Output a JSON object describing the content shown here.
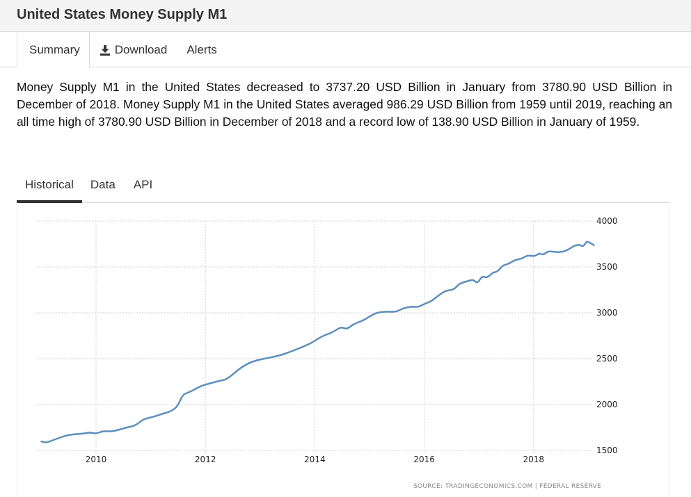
{
  "header": {
    "title": "United States Money Supply M1"
  },
  "top_tabs": [
    {
      "label": "Summary",
      "icon": null,
      "active": true
    },
    {
      "label": "Download",
      "icon": "download-icon",
      "active": false
    },
    {
      "label": "Alerts",
      "icon": null,
      "active": false
    }
  ],
  "summary": "Money Supply M1 in the United States decreased to 3737.20 USD Billion in January from 3780.90 USD Billion in December of 2018. Money Supply M1 in the United States averaged 986.29 USD Billion from 1959 until 2019, reaching an all time high of 3780.90 USD Billion in December of 2018 and a record low of 138.90 USD Billion in January of 1959.",
  "chart_tabs": [
    {
      "label": "Historical",
      "active": true
    },
    {
      "label": "Data",
      "active": false
    },
    {
      "label": "API",
      "active": false
    }
  ],
  "colors": {
    "series": "#5d8fbd",
    "grid": "#cfcfcf",
    "active_tab": "#333333"
  },
  "chart_data": {
    "type": "line",
    "title": "United States Money Supply M1",
    "xlabel": "",
    "ylabel": "USD Billion",
    "xlim": [
      2009.0,
      2019.1
    ],
    "ylim": [
      1500,
      4000
    ],
    "grid": true,
    "y_axis_position": "right",
    "x_ticks": [
      "2010",
      "2012",
      "2014",
      "2016",
      "2018"
    ],
    "x_tick_values": [
      2010,
      2012,
      2014,
      2016,
      2018
    ],
    "y_ticks": [
      "4000",
      "3500",
      "3000",
      "2500",
      "2000",
      "1500"
    ],
    "y_tick_values": [
      4000,
      3500,
      3000,
      2500,
      2000,
      1500
    ],
    "source": "SOURCE: TRADINGECONOMICS.COM | FEDERAL RESERVE",
    "series": [
      {
        "name": "Money Supply M1",
        "x": [
          2009.0,
          2009.09,
          2009.22,
          2009.33,
          2009.43,
          2009.56,
          2009.75,
          2009.9,
          2010.0,
          2010.13,
          2010.28,
          2010.43,
          2010.56,
          2010.73,
          2010.86,
          2011.04,
          2011.23,
          2011.36,
          2011.49,
          2011.58,
          2011.68,
          2011.81,
          2011.93,
          2012.06,
          2012.25,
          2012.38,
          2012.51,
          2012.63,
          2012.8,
          2012.95,
          2013.14,
          2013.33,
          2013.49,
          2013.65,
          2013.84,
          2013.97,
          2014.12,
          2014.33,
          2014.48,
          2014.58,
          2014.71,
          2014.86,
          2014.99,
          2015.12,
          2015.31,
          2015.48,
          2015.63,
          2015.78,
          2015.88,
          2016.01,
          2016.14,
          2016.26,
          2016.39,
          2016.54,
          2016.64,
          2016.77,
          2016.9,
          2016.97,
          2017.06,
          2017.15,
          2017.25,
          2017.34,
          2017.43,
          2017.53,
          2017.66,
          2017.79,
          2017.89,
          2018.02,
          2018.11,
          2018.17,
          2018.27,
          2018.43,
          2018.55,
          2018.66,
          2018.75,
          2018.84,
          2018.91,
          2018.97,
          2019.04,
          2019.1
        ],
        "values": [
          1598,
          1583,
          1614,
          1636,
          1659,
          1674,
          1682,
          1697,
          1682,
          1712,
          1705,
          1727,
          1750,
          1773,
          1841,
          1864,
          1902,
          1924,
          1977,
          2106,
          2129,
          2167,
          2205,
          2227,
          2258,
          2273,
          2333,
          2394,
          2455,
          2485,
          2508,
          2530,
          2561,
          2598,
          2644,
          2682,
          2742,
          2788,
          2848,
          2818,
          2879,
          2909,
          2955,
          3000,
          3015,
          3008,
          3053,
          3068,
          3061,
          3098,
          3129,
          3189,
          3242,
          3250,
          3318,
          3341,
          3364,
          3318,
          3402,
          3379,
          3439,
          3447,
          3515,
          3530,
          3576,
          3591,
          3629,
          3614,
          3652,
          3629,
          3674,
          3659,
          3667,
          3697,
          3735,
          3742,
          3720,
          3780.9,
          3760,
          3737.2
        ]
      }
    ]
  }
}
